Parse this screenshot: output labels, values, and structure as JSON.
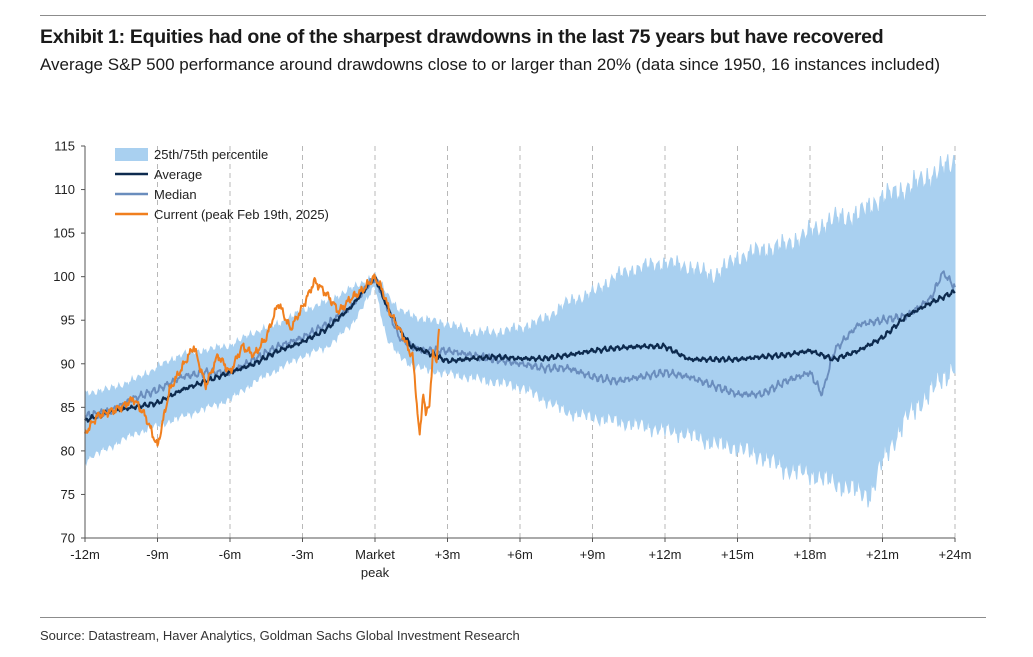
{
  "header": {
    "title": "Exhibit 1: Equities had one of the sharpest drawdowns in the last 75 years but have recovered",
    "subtitle": "Average S&P 500 performance around drawdowns close to or larger than 20% (data since 1950, 16 instances included)"
  },
  "footer": {
    "source": "Source: Datastream, Haver Analytics, Goldman Sachs Global Investment Research"
  },
  "chart_data": {
    "type": "line",
    "x_unit": "months relative to market peak",
    "xlim": [
      -12,
      24
    ],
    "ylim": [
      70,
      115
    ],
    "y_ticks": [
      70,
      75,
      80,
      85,
      90,
      95,
      100,
      105,
      110,
      115
    ],
    "x_ticks": [
      {
        "x": -12,
        "label": "-12m"
      },
      {
        "x": -9,
        "label": "-9m"
      },
      {
        "x": -6,
        "label": "-6m"
      },
      {
        "x": -3,
        "label": "-3m"
      },
      {
        "x": 0,
        "label": "Market",
        "label2": "peak"
      },
      {
        "x": 3,
        "label": "+3m"
      },
      {
        "x": 6,
        "label": "+6m"
      },
      {
        "x": 9,
        "label": "+9m"
      },
      {
        "x": 12,
        "label": "+12m"
      },
      {
        "x": 15,
        "label": "+15m"
      },
      {
        "x": 18,
        "label": "+18m"
      },
      {
        "x": 21,
        "label": "+21m"
      },
      {
        "x": 24,
        "label": "+24m"
      }
    ],
    "vertical_gridlines": "dashed at each x tick",
    "legend_position": "top-left",
    "colors": {
      "band": "#a9d0f0",
      "average": "#0d2a4e",
      "median": "#6a8dbd",
      "current": "#f07f1e"
    },
    "band": {
      "name": "25th/75th percentile",
      "x": [
        -12,
        -11,
        -10,
        -9,
        -8,
        -7,
        -6,
        -5,
        -4,
        -3,
        -2,
        -1,
        0,
        0.5,
        1,
        1.5,
        2,
        3,
        4,
        5,
        6,
        7,
        8,
        9,
        10,
        11,
        12,
        13,
        14,
        15,
        16,
        17,
        18,
        19,
        20,
        20.5,
        21,
        22,
        23,
        24
      ],
      "upper": [
        86.5,
        87,
        88,
        89.5,
        91,
        91.5,
        92,
        93.5,
        94.5,
        96,
        97,
        98.5,
        100,
        98,
        96,
        95.5,
        95,
        94.5,
        93.5,
        93.5,
        94,
        95,
        97,
        98,
        100,
        101,
        101.5,
        101,
        100,
        102,
        103,
        103.5,
        105,
        106.5,
        107,
        108,
        109,
        110,
        111.5,
        113
      ],
      "lower": [
        79,
        80.5,
        82,
        83,
        84,
        85,
        86,
        88,
        89.5,
        91,
        92,
        94.5,
        99,
        93,
        91,
        90,
        89.5,
        89,
        88.5,
        88,
        87.5,
        86,
        84.5,
        84,
        83.5,
        83,
        82.5,
        82,
        81,
        80.5,
        79.5,
        78,
        77.5,
        76.5,
        75.5,
        75,
        79,
        84,
        87,
        90
      ]
    },
    "series": [
      {
        "name": "Average",
        "x": [
          -12,
          -11,
          -10,
          -9,
          -8,
          -7,
          -6,
          -5,
          -4,
          -3,
          -2,
          -1,
          0,
          0.5,
          1,
          1.5,
          2,
          3,
          4,
          5,
          6,
          7,
          8,
          9,
          10,
          11,
          12,
          13,
          14,
          15,
          16,
          17,
          18,
          19,
          20,
          21,
          22,
          23,
          24
        ],
        "y": [
          83.5,
          84.5,
          85,
          85.5,
          87,
          88,
          89,
          90,
          91.5,
          92.5,
          94,
          96.5,
          100,
          96.5,
          94,
          92,
          91.5,
          90.3,
          90.6,
          90.8,
          90.6,
          90.6,
          91,
          91.5,
          91.8,
          92,
          92,
          90.5,
          90.5,
          90.5,
          90.8,
          91,
          91.5,
          90.5,
          91.5,
          93,
          95.5,
          97,
          98.3
        ]
      },
      {
        "name": "Median",
        "x": [
          -12,
          -11,
          -10,
          -9,
          -8,
          -7,
          -6,
          -5,
          -4,
          -3,
          -2,
          -1,
          0,
          0.5,
          1,
          1.5,
          2,
          3,
          4,
          5,
          6,
          7,
          8,
          9,
          10,
          11,
          12,
          13,
          14,
          15,
          16,
          17,
          18,
          18.5,
          19,
          20,
          21,
          22,
          23,
          23.5,
          24
        ],
        "y": [
          84,
          84.5,
          86,
          87,
          88.5,
          89,
          89,
          90.5,
          92,
          93,
          94.5,
          96.5,
          100,
          96.5,
          93,
          92,
          91.5,
          91.5,
          91,
          90.5,
          90,
          89.5,
          89.5,
          88.5,
          88,
          88.5,
          89,
          88.5,
          87.5,
          86.5,
          86.5,
          88,
          89,
          86.5,
          91.5,
          94.5,
          95,
          95.5,
          97.5,
          100.5,
          98.8
        ]
      },
      {
        "name": "Current (peak Feb 19th, 2025)",
        "x": [
          -12,
          -11.5,
          -11,
          -10.5,
          -10,
          -9.5,
          -9,
          -8.5,
          -8,
          -7.5,
          -7,
          -6.5,
          -6,
          -5.5,
          -5,
          -4.5,
          -4,
          -3.5,
          -3,
          -2.5,
          -2,
          -1.5,
          -1,
          -0.5,
          0,
          0.3,
          0.6,
          0.9,
          1.2,
          1.4,
          1.55,
          1.7,
          1.85,
          2,
          2.1,
          2.25,
          2.4,
          2.55,
          2.65
        ],
        "y": [
          82,
          84,
          84.5,
          85,
          86,
          84,
          80.5,
          87,
          89.5,
          92,
          87.5,
          91,
          89,
          92,
          91,
          93,
          97,
          94,
          96.5,
          99.5,
          98,
          96,
          97.5,
          98.5,
          100,
          98.5,
          96,
          94.5,
          93,
          91.5,
          91,
          86.5,
          81.5,
          87,
          84,
          85.5,
          91,
          90.5,
          94
        ]
      }
    ]
  }
}
